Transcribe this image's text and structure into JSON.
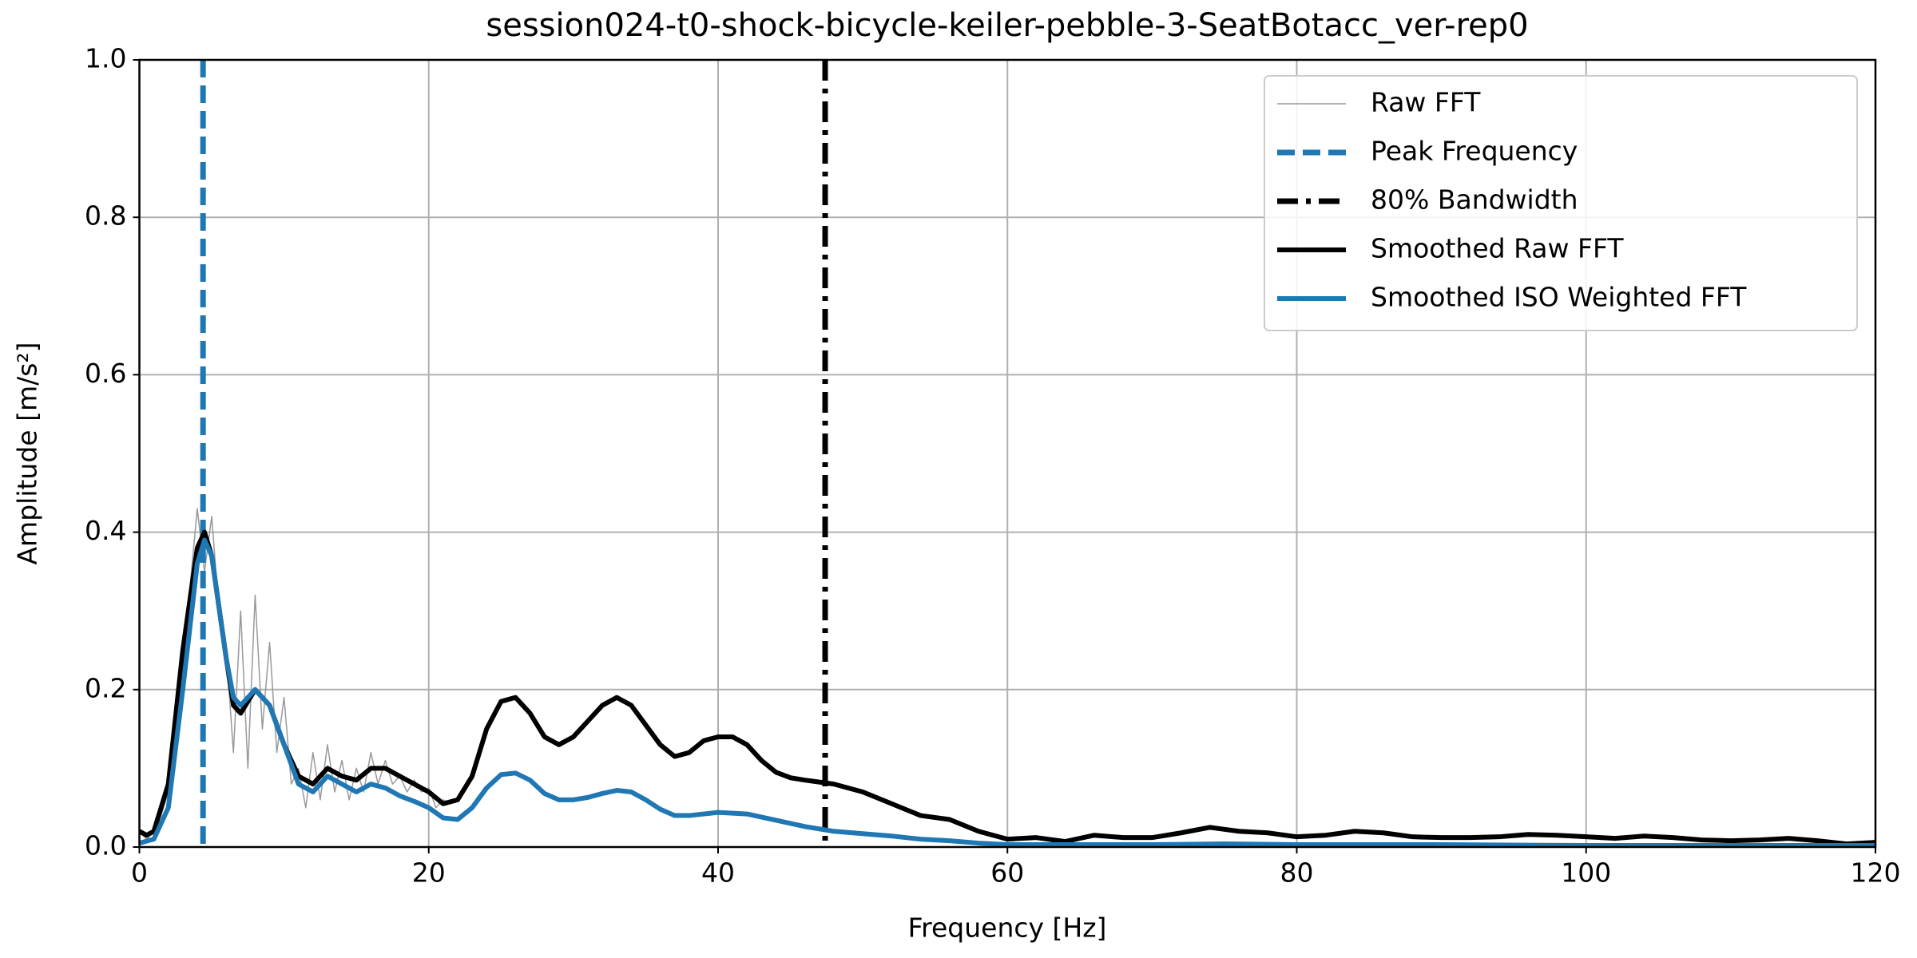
{
  "chart_data": {
    "type": "line",
    "title": "session024-t0-shock-bicycle-keiler-pebble-3-SeatBotacc_ver-rep0",
    "xlabel": "Frequency [Hz]",
    "ylabel": "Amplitude [m/s²]",
    "xlim": [
      0,
      120
    ],
    "ylim": [
      0,
      1
    ],
    "xticks": [
      0,
      20,
      40,
      60,
      80,
      100,
      120
    ],
    "yticks": [
      {
        "value": 0,
        "label": "0.0"
      },
      0.2,
      0.4,
      0.6,
      0.8,
      {
        "value": 1,
        "label": "1.0"
      }
    ],
    "grid": true,
    "legend": "upper right",
    "series": [
      {
        "name": "Raw FFT",
        "color": "#999999",
        "style": "solid",
        "width": 1.5,
        "x": [
          0,
          0.5,
          1,
          1.5,
          2,
          2.5,
          3,
          3.5,
          4,
          4.5,
          5,
          5.5,
          6,
          6.5,
          7,
          7.5,
          8,
          8.5,
          9,
          9.5,
          10,
          10.5,
          11,
          11.5,
          12,
          12.5,
          13,
          13.5,
          14,
          14.5,
          15,
          15.5,
          16,
          16.5,
          17,
          17.5,
          18,
          18.5,
          19,
          19.5,
          20,
          20.5,
          21,
          21.5,
          22
        ],
        "values": [
          0.02,
          0.01,
          0.02,
          0.04,
          0.07,
          0.14,
          0.22,
          0.33,
          0.43,
          0.35,
          0.42,
          0.3,
          0.25,
          0.12,
          0.3,
          0.1,
          0.32,
          0.15,
          0.26,
          0.12,
          0.19,
          0.08,
          0.1,
          0.05,
          0.12,
          0.06,
          0.13,
          0.07,
          0.11,
          0.06,
          0.1,
          0.07,
          0.12,
          0.08,
          0.11,
          0.08,
          0.09,
          0.07,
          0.085,
          0.07,
          0.075,
          0.05,
          0.06,
          0.055,
          0.06
        ]
      },
      {
        "name": "Peak Frequency",
        "color": "#1f77b4",
        "style": "dashed",
        "width": 7,
        "xvalue": 4.4
      },
      {
        "name": "80% Bandwidth",
        "color": "#000000",
        "style": "dashdot",
        "width": 7,
        "xvalue": 47.4
      },
      {
        "name": "Smoothed Raw FFT",
        "color": "#000000",
        "style": "solid",
        "width": 6,
        "x": [
          0,
          0.5,
          1,
          2,
          3,
          4,
          4.5,
          5,
          6,
          6.5,
          7,
          8,
          9,
          10,
          11,
          12,
          13,
          14,
          15,
          16,
          17,
          18,
          19,
          20,
          21,
          22,
          23,
          24,
          25,
          26,
          27,
          28,
          29,
          30,
          31,
          32,
          33,
          34,
          35,
          36,
          37,
          38,
          39,
          40,
          41,
          42,
          43,
          44,
          45,
          46,
          48,
          50,
          52,
          54,
          56,
          58,
          60,
          62,
          64,
          66,
          68,
          70,
          72,
          74,
          76,
          78,
          80,
          82,
          84,
          86,
          88,
          90,
          92,
          94,
          96,
          98,
          100,
          102,
          104,
          106,
          108,
          110,
          112,
          114,
          116,
          118,
          120
        ],
        "values": [
          0.02,
          0.015,
          0.02,
          0.08,
          0.25,
          0.38,
          0.4,
          0.37,
          0.24,
          0.18,
          0.17,
          0.2,
          0.18,
          0.13,
          0.09,
          0.08,
          0.1,
          0.09,
          0.085,
          0.1,
          0.1,
          0.09,
          0.08,
          0.07,
          0.055,
          0.06,
          0.09,
          0.15,
          0.185,
          0.19,
          0.17,
          0.14,
          0.13,
          0.14,
          0.16,
          0.18,
          0.19,
          0.18,
          0.155,
          0.13,
          0.115,
          0.12,
          0.135,
          0.14,
          0.14,
          0.13,
          0.11,
          0.095,
          0.088,
          0.085,
          0.08,
          0.07,
          0.055,
          0.04,
          0.035,
          0.02,
          0.01,
          0.012,
          0.007,
          0.015,
          0.012,
          0.012,
          0.018,
          0.025,
          0.02,
          0.018,
          0.013,
          0.015,
          0.02,
          0.018,
          0.013,
          0.012,
          0.012,
          0.013,
          0.016,
          0.015,
          0.013,
          0.011,
          0.014,
          0.012,
          0.009,
          0.008,
          0.009,
          0.011,
          0.008,
          0.004,
          0.006
        ]
      },
      {
        "name": "Smoothed ISO Weighted FFT",
        "color": "#1f77b4",
        "style": "solid",
        "width": 6,
        "x": [
          0,
          1,
          2,
          3,
          4,
          4.5,
          5,
          6,
          6.5,
          7,
          8,
          9,
          10,
          11,
          12,
          13,
          14,
          15,
          16,
          17,
          18,
          19,
          20,
          21,
          22,
          23,
          24,
          25,
          26,
          27,
          28,
          29,
          30,
          31,
          32,
          33,
          34,
          35,
          36,
          37,
          38,
          40,
          42,
          44,
          46,
          48,
          50,
          52,
          54,
          56,
          58,
          60,
          70,
          75,
          80,
          90,
          100,
          110,
          120
        ],
        "values": [
          0.005,
          0.01,
          0.05,
          0.2,
          0.36,
          0.39,
          0.37,
          0.24,
          0.19,
          0.18,
          0.2,
          0.18,
          0.13,
          0.08,
          0.07,
          0.09,
          0.08,
          0.07,
          0.08,
          0.075,
          0.065,
          0.058,
          0.05,
          0.037,
          0.035,
          0.05,
          0.075,
          0.092,
          0.094,
          0.085,
          0.068,
          0.06,
          0.06,
          0.063,
          0.068,
          0.072,
          0.07,
          0.06,
          0.048,
          0.04,
          0.04,
          0.044,
          0.042,
          0.034,
          0.026,
          0.02,
          0.017,
          0.014,
          0.01,
          0.008,
          0.005,
          0.003,
          0.003,
          0.004,
          0.003,
          0.003,
          0.002,
          0.002,
          0.002
        ]
      }
    ]
  }
}
